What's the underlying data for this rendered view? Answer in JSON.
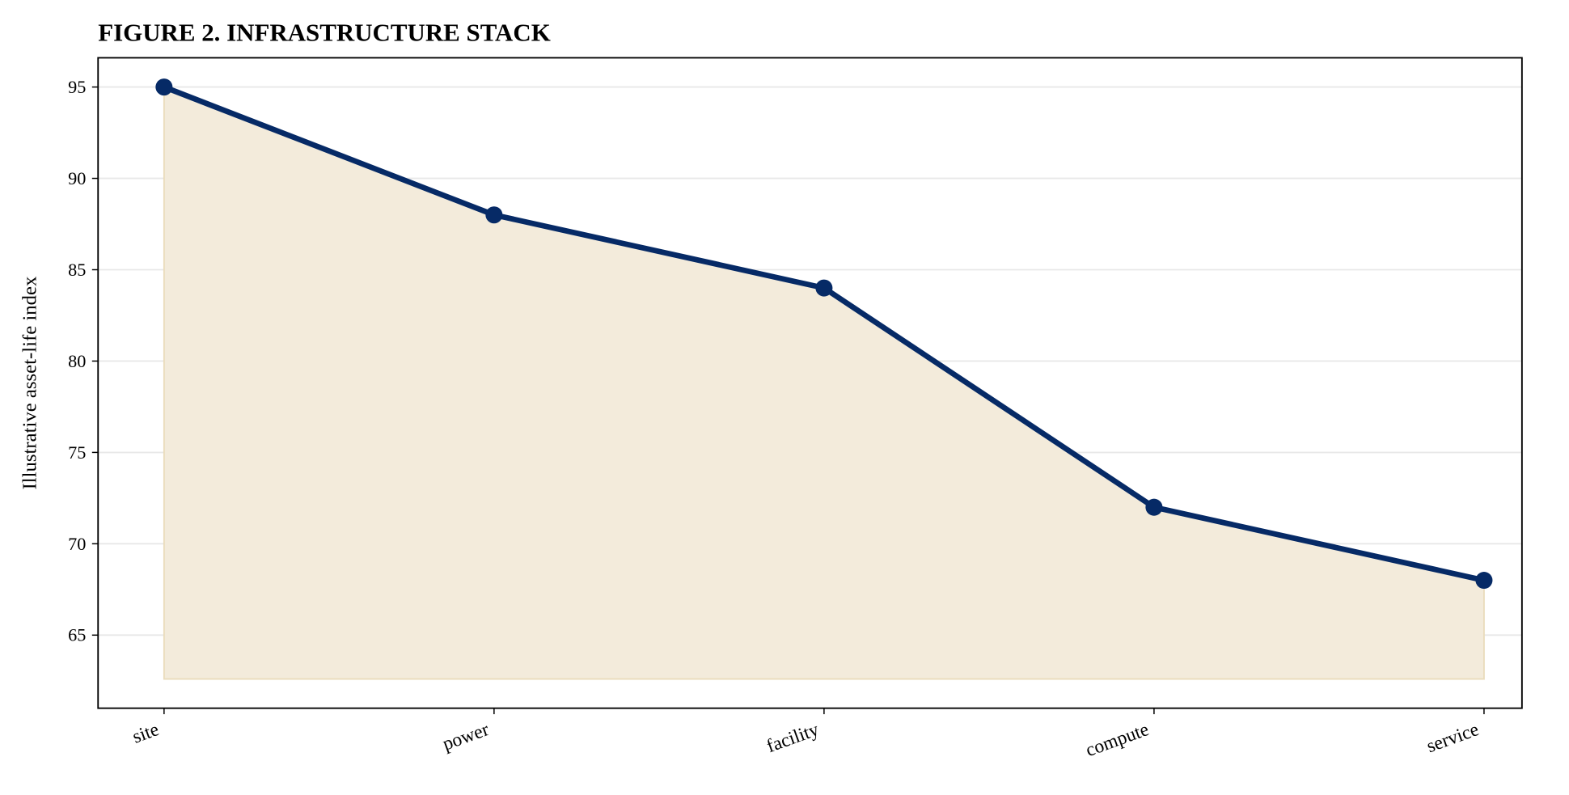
{
  "chart_data": {
    "type": "line",
    "title": "FIGURE 2. INFRASTRUCTURE STACK",
    "y_label": "Illustrative asset-life index",
    "categories": [
      "site",
      "power",
      "facility",
      "compute",
      "service"
    ],
    "series": [
      {
        "color": "#062a66",
        "values": [
          95,
          88,
          84,
          72,
          68
        ]
      }
    ],
    "area_color": "#f3ebdb",
    "area_baseline": 62.6,
    "ylim": [
      61.0,
      96.6
    ],
    "yticks": [
      65,
      70,
      75,
      80,
      85,
      90,
      95
    ],
    "grid": true
  }
}
